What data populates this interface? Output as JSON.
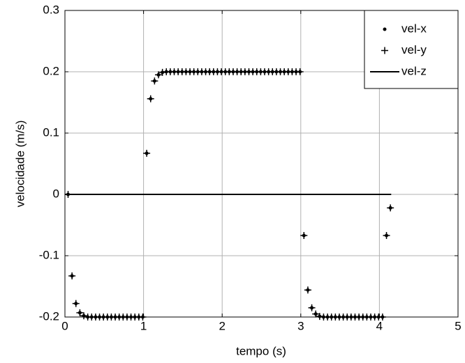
{
  "chart_data": {
    "type": "scatter",
    "xlabel": "tempo (s)",
    "ylabel": "velocidade (m/s)",
    "xlim": [
      0,
      5
    ],
    "xticks": [
      0,
      1,
      2,
      3,
      4,
      5
    ],
    "ylim": [
      -0.2,
      0.3
    ],
    "yticks": [
      0.3,
      0.2,
      0.1,
      0,
      -0.1,
      -0.2
    ],
    "grid": true,
    "legend": "upper right",
    "x": [
      0.04,
      0.09,
      0.14,
      0.19,
      0.24,
      0.29,
      0.34,
      0.39,
      0.44,
      0.49,
      0.54,
      0.59,
      0.64,
      0.69,
      0.74,
      0.79,
      0.84,
      0.89,
      0.94,
      0.99,
      1.04,
      1.09,
      1.14,
      1.19,
      1.24,
      1.29,
      1.34,
      1.39,
      1.44,
      1.49,
      1.54,
      1.59,
      1.64,
      1.69,
      1.74,
      1.79,
      1.84,
      1.89,
      1.94,
      1.99,
      2.04,
      2.09,
      2.14,
      2.19,
      2.24,
      2.29,
      2.34,
      2.39,
      2.44,
      2.49,
      2.54,
      2.59,
      2.64,
      2.69,
      2.74,
      2.79,
      2.84,
      2.89,
      2.94,
      2.99,
      3.04,
      3.09,
      3.14,
      3.19,
      3.24,
      3.29,
      3.34,
      3.39,
      3.44,
      3.49,
      3.54,
      3.59,
      3.64,
      3.69,
      3.74,
      3.79,
      3.84,
      3.89,
      3.94,
      3.99,
      4.04,
      4.09,
      4.14
    ],
    "series": [
      {
        "name": "vel-x",
        "color": "#000000",
        "marker": "dot",
        "values": [
          0,
          -0.133,
          -0.178,
          -0.193,
          -0.198,
          -0.2,
          -0.2,
          -0.2,
          -0.2,
          -0.2,
          -0.2,
          -0.2,
          -0.2,
          -0.2,
          -0.2,
          -0.2,
          -0.2,
          -0.2,
          -0.2,
          -0.2,
          0.067,
          0.156,
          0.185,
          0.195,
          0.199,
          0.2,
          0.2,
          0.2,
          0.2,
          0.2,
          0.2,
          0.2,
          0.2,
          0.2,
          0.2,
          0.2,
          0.2,
          0.2,
          0.2,
          0.2,
          0.2,
          0.2,
          0.2,
          0.2,
          0.2,
          0.2,
          0.2,
          0.2,
          0.2,
          0.2,
          0.2,
          0.2,
          0.2,
          0.2,
          0.2,
          0.2,
          0.2,
          0.2,
          0.2,
          0.2,
          -0.067,
          -0.156,
          -0.185,
          -0.195,
          -0.199,
          -0.2,
          -0.2,
          -0.2,
          -0.2,
          -0.2,
          -0.2,
          -0.2,
          -0.2,
          -0.2,
          -0.2,
          -0.2,
          -0.2,
          -0.2,
          -0.2,
          -0.2,
          -0.2,
          -0.067,
          -0.022
        ]
      },
      {
        "name": "vel-y",
        "color": "#000000",
        "marker": "plus",
        "values": [
          0,
          -0.133,
          -0.178,
          -0.193,
          -0.198,
          -0.2,
          -0.2,
          -0.2,
          -0.2,
          -0.2,
          -0.2,
          -0.2,
          -0.2,
          -0.2,
          -0.2,
          -0.2,
          -0.2,
          -0.2,
          -0.2,
          -0.2,
          0.067,
          0.156,
          0.185,
          0.195,
          0.199,
          0.2,
          0.2,
          0.2,
          0.2,
          0.2,
          0.2,
          0.2,
          0.2,
          0.2,
          0.2,
          0.2,
          0.2,
          0.2,
          0.2,
          0.2,
          0.2,
          0.2,
          0.2,
          0.2,
          0.2,
          0.2,
          0.2,
          0.2,
          0.2,
          0.2,
          0.2,
          0.2,
          0.2,
          0.2,
          0.2,
          0.2,
          0.2,
          0.2,
          0.2,
          0.2,
          -0.067,
          -0.156,
          -0.185,
          -0.195,
          -0.199,
          -0.2,
          -0.2,
          -0.2,
          -0.2,
          -0.2,
          -0.2,
          -0.2,
          -0.2,
          -0.2,
          -0.2,
          -0.2,
          -0.2,
          -0.2,
          -0.2,
          -0.2,
          -0.2,
          -0.067,
          -0.022
        ]
      },
      {
        "name": "vel-z",
        "color": "#000000",
        "marker": "line",
        "x": [
          0,
          4.15
        ],
        "values": [
          0,
          0
        ]
      }
    ]
  }
}
